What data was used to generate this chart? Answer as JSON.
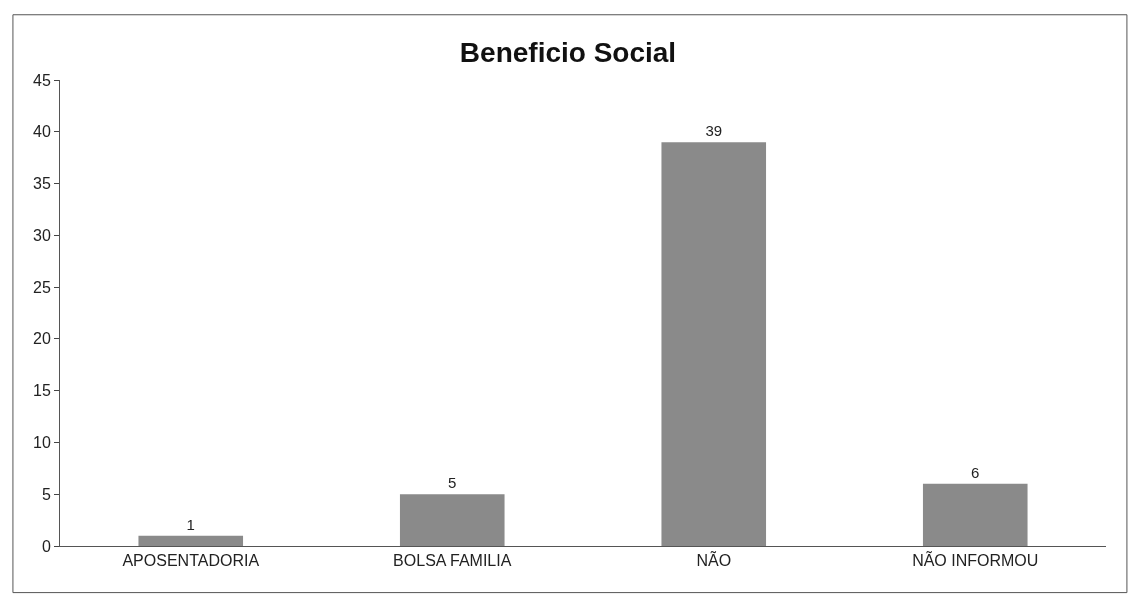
{
  "chart_data": {
    "type": "bar",
    "title": "Beneficio Social",
    "categories": [
      "APOSENTADORIA",
      "BOLSA FAMILIA",
      "NÃO",
      "NÃO INFORMOU"
    ],
    "values": [
      1,
      5,
      39,
      6
    ],
    "color": "#8a8a8a",
    "ylim": [
      0,
      45
    ],
    "yticks": [
      0,
      5,
      10,
      15,
      20,
      25,
      30,
      35,
      40,
      45
    ],
    "data_labels": true
  }
}
